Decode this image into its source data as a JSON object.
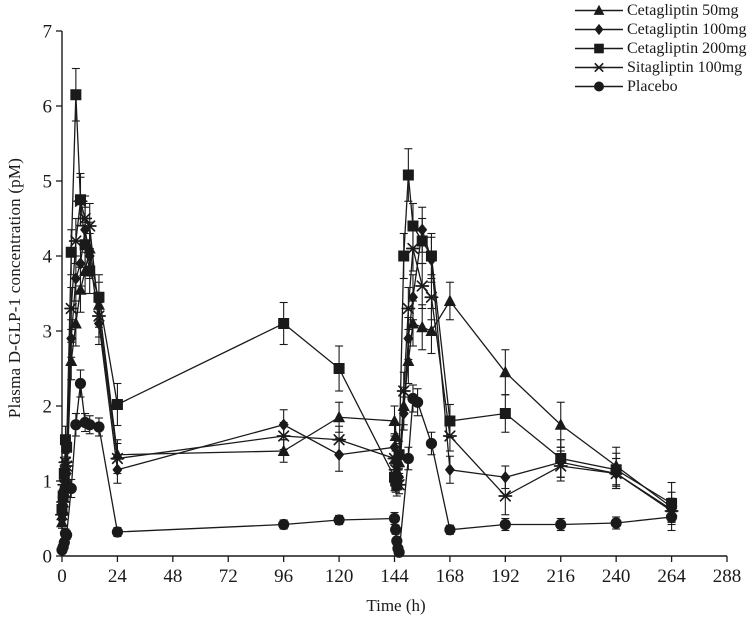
{
  "figure": {
    "background": "#ffffff",
    "ink_color": "#1a1a1a"
  },
  "chart_data": {
    "type": "line",
    "title": "",
    "xlabel": "Time (h)",
    "ylabel": "Plasma D-GLP-1 concentration (pM)",
    "xlim": [
      0,
      288
    ],
    "ylim": [
      0,
      7
    ],
    "xticks": [
      0,
      24,
      48,
      72,
      96,
      120,
      144,
      168,
      192,
      216,
      240,
      264,
      288
    ],
    "yticks": [
      0,
      1,
      2,
      3,
      4,
      5,
      6,
      7
    ],
    "grid": false,
    "error_bars": true,
    "legend_position": "top-right",
    "series": [
      {
        "name": "Cetagliptin 50mg",
        "marker": "triangle",
        "x": [
          0,
          0.5,
          1,
          1.5,
          2,
          4,
          6,
          8,
          10,
          12,
          16,
          24,
          96,
          120,
          144,
          144.5,
          145,
          146,
          148,
          150,
          152,
          156,
          160,
          168,
          192,
          216,
          240,
          264
        ],
        "y": [
          0.45,
          0.62,
          0.85,
          1.05,
          1.0,
          2.6,
          3.1,
          3.55,
          3.8,
          4.1,
          3.35,
          1.35,
          1.4,
          1.85,
          1.8,
          1.6,
          1.35,
          1.25,
          2.0,
          2.6,
          3.1,
          3.05,
          3.0,
          3.4,
          2.45,
          1.75,
          1.2,
          0.65
        ],
        "err": [
          0.08,
          0.08,
          0.1,
          0.12,
          0.1,
          0.25,
          0.3,
          0.3,
          0.3,
          0.35,
          0.3,
          0.2,
          0.15,
          0.2,
          0.2,
          0.15,
          0.15,
          0.15,
          0.25,
          0.3,
          0.3,
          0.3,
          0.3,
          0.25,
          0.3,
          0.3,
          0.25,
          0.2
        ]
      },
      {
        "name": "Cetagliptin 100mg",
        "marker": "diamond",
        "x": [
          0,
          0.5,
          1,
          1.5,
          2,
          4,
          6,
          8,
          10,
          12,
          16,
          24,
          96,
          120,
          144,
          144.5,
          145,
          146,
          148,
          150,
          152,
          156,
          160,
          168,
          192,
          216,
          240,
          264
        ],
        "y": [
          0.5,
          0.68,
          0.92,
          1.15,
          1.1,
          2.9,
          3.7,
          3.9,
          4.35,
          4.0,
          3.1,
          1.15,
          1.75,
          1.35,
          1.45,
          1.25,
          1.1,
          1.05,
          1.9,
          2.9,
          3.45,
          4.35,
          3.95,
          1.15,
          1.05,
          1.25,
          1.1,
          0.62
        ],
        "err": [
          0.08,
          0.08,
          0.1,
          0.12,
          0.1,
          0.25,
          0.3,
          0.3,
          0.3,
          0.3,
          0.28,
          0.18,
          0.2,
          0.22,
          0.18,
          0.15,
          0.15,
          0.15,
          0.22,
          0.28,
          0.3,
          0.3,
          0.3,
          0.18,
          0.15,
          0.2,
          0.2,
          0.15
        ]
      },
      {
        "name": "Cetagliptin 200mg",
        "marker": "square",
        "x": [
          0,
          0.5,
          1,
          1.5,
          2,
          4,
          6,
          8,
          10,
          12,
          16,
          24,
          96,
          120,
          144,
          144.5,
          145,
          146,
          148,
          150,
          152,
          156,
          160,
          168,
          192,
          216,
          240,
          264
        ],
        "y": [
          0.62,
          0.8,
          1.1,
          1.55,
          1.45,
          4.05,
          6.15,
          4.75,
          4.15,
          3.8,
          3.45,
          2.02,
          3.1,
          2.5,
          1.05,
          1.0,
          0.95,
          1.35,
          4.0,
          5.08,
          4.4,
          4.2,
          4.0,
          1.8,
          1.9,
          1.3,
          1.15,
          0.7
        ],
        "err": [
          0.08,
          0.08,
          0.12,
          0.18,
          0.15,
          0.3,
          0.35,
          0.35,
          0.3,
          0.3,
          0.3,
          0.28,
          0.28,
          0.3,
          0.18,
          0.15,
          0.15,
          0.18,
          0.3,
          0.35,
          0.3,
          0.3,
          0.3,
          0.22,
          0.25,
          0.25,
          0.22,
          0.28
        ]
      },
      {
        "name": "Sitagliptin 100mg",
        "marker": "asterisk",
        "x": [
          0,
          0.5,
          1,
          1.5,
          2,
          4,
          6,
          8,
          10,
          12,
          16,
          24,
          96,
          120,
          144,
          144.5,
          145,
          146,
          148,
          150,
          152,
          156,
          160,
          168,
          192,
          216,
          240,
          264
        ],
        "y": [
          0.55,
          0.72,
          0.95,
          1.25,
          1.2,
          3.3,
          4.2,
          4.73,
          4.5,
          4.4,
          3.2,
          1.3,
          1.6,
          1.55,
          1.3,
          1.15,
          1.0,
          0.95,
          2.2,
          3.3,
          4.1,
          3.6,
          3.45,
          1.6,
          0.8,
          1.2,
          1.1,
          0.6
        ],
        "err": [
          0.08,
          0.08,
          0.1,
          0.12,
          0.12,
          0.28,
          0.3,
          0.32,
          0.3,
          0.3,
          0.28,
          0.2,
          0.18,
          0.18,
          0.15,
          0.12,
          0.12,
          0.12,
          0.25,
          0.28,
          0.3,
          0.3,
          0.3,
          0.2,
          0.25,
          0.2,
          0.2,
          0.15
        ]
      },
      {
        "name": "Placebo",
        "marker": "circle",
        "x": [
          0,
          0.5,
          1,
          1.5,
          2,
          4,
          6,
          8,
          10,
          12,
          16,
          24,
          96,
          120,
          144,
          144.5,
          145,
          145.5,
          146,
          150,
          152,
          154,
          160,
          168,
          192,
          216,
          240,
          264
        ],
        "y": [
          0.08,
          0.12,
          0.18,
          0.3,
          0.28,
          0.9,
          1.75,
          2.3,
          1.78,
          1.75,
          1.72,
          0.32,
          0.42,
          0.48,
          0.5,
          0.35,
          0.2,
          0.1,
          0.05,
          1.3,
          2.1,
          2.05,
          1.5,
          0.35,
          0.42,
          0.42,
          0.44,
          0.52
        ],
        "err": [
          0.04,
          0.04,
          0.05,
          0.06,
          0.06,
          0.12,
          0.15,
          0.18,
          0.12,
          0.12,
          0.12,
          0.06,
          0.06,
          0.06,
          0.08,
          0.06,
          0.05,
          0.04,
          0.04,
          0.15,
          0.18,
          0.18,
          0.15,
          0.06,
          0.08,
          0.08,
          0.08,
          0.18
        ]
      }
    ]
  }
}
